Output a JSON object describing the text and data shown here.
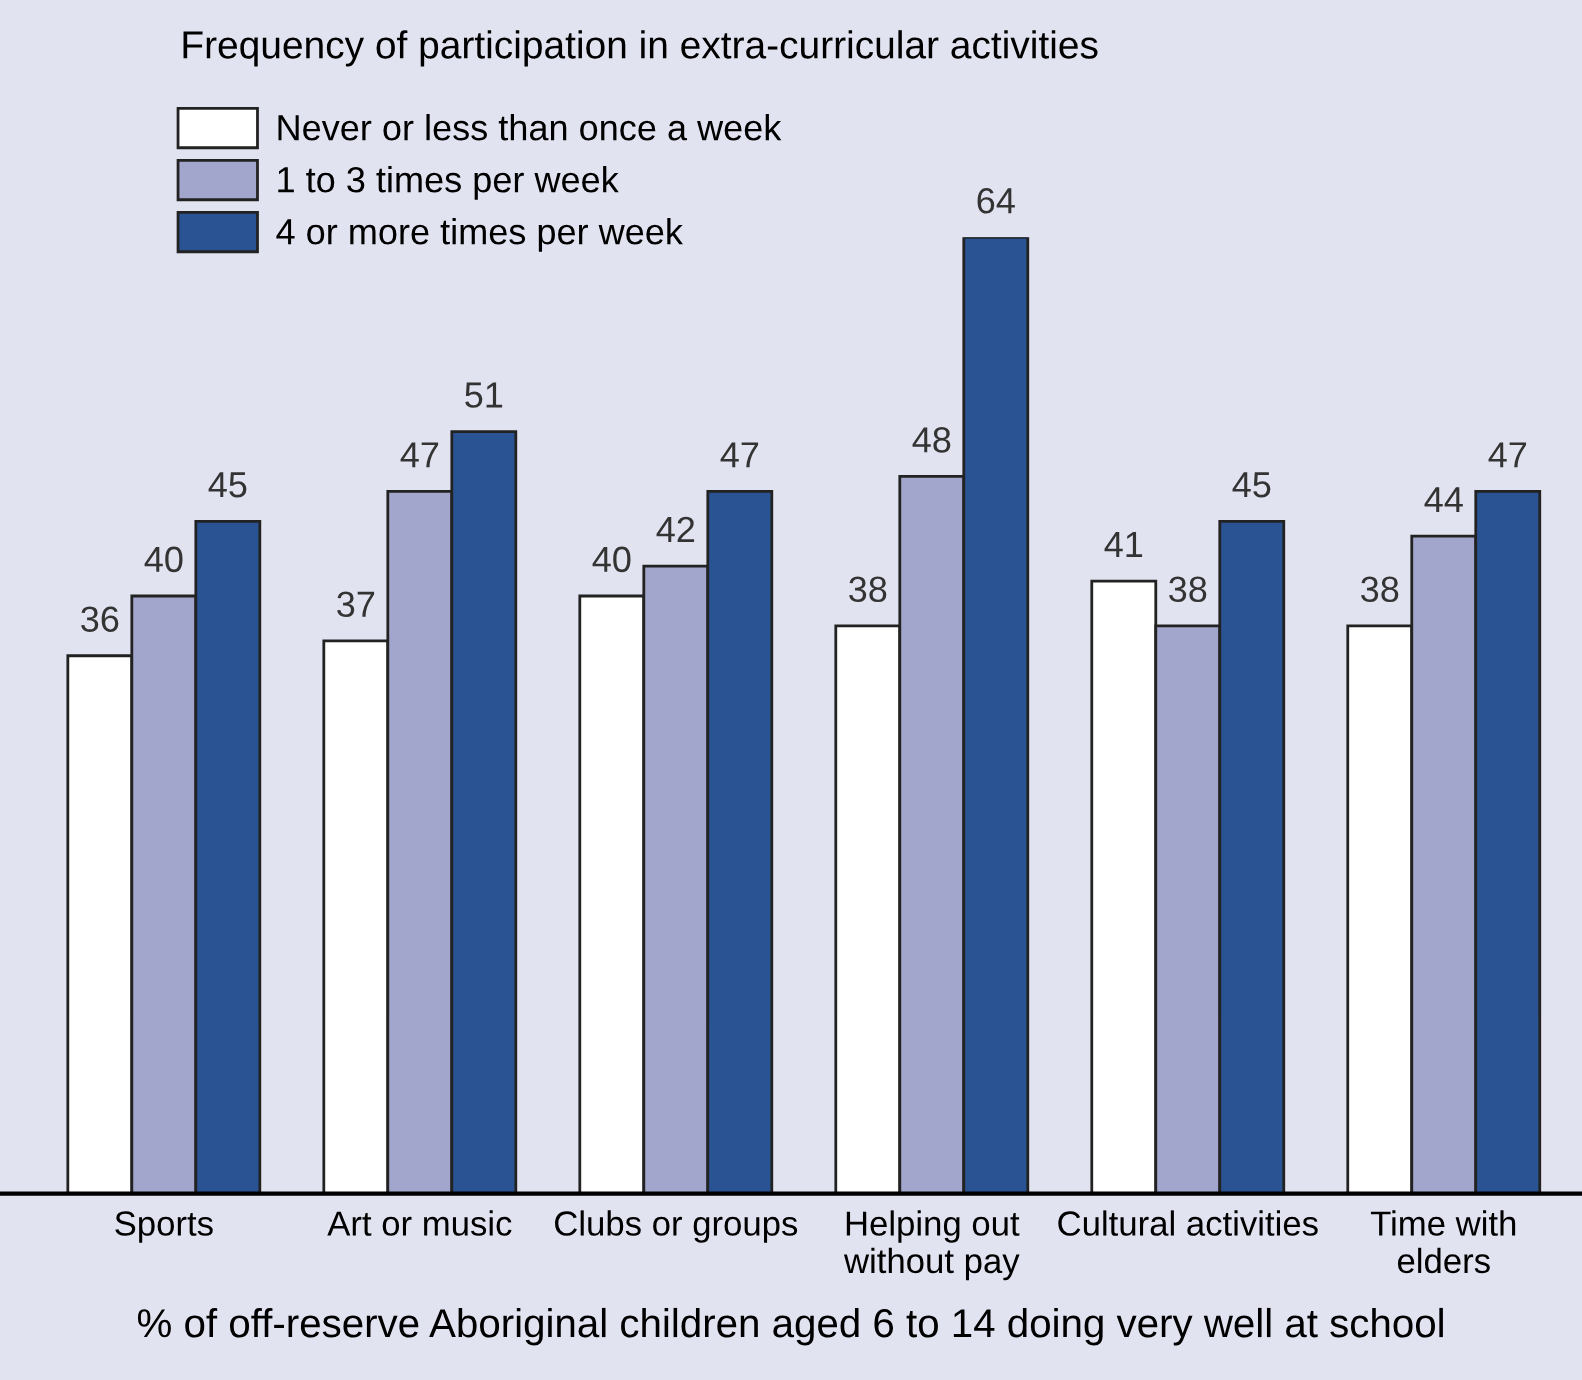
{
  "chart_data": {
    "type": "bar",
    "title": "Frequency of participation in extra-curricular activities",
    "xlabel": "% of off-reserve Aboriginal children aged 6 to 14 doing very well at school",
    "categories": [
      "Sports",
      "Art or music",
      "Clubs or groups",
      "Helping out\nwithout pay",
      "Cultural activities",
      "Time with\nelders"
    ],
    "series": [
      {
        "name": "Never or less than once a week",
        "color": "#ffffff",
        "values": [
          36,
          37,
          40,
          38,
          41,
          38
        ]
      },
      {
        "name": "1 to 3 times per week",
        "color": "#a2a6cc",
        "values": [
          40,
          47,
          42,
          48,
          38,
          44
        ]
      },
      {
        "name": "4 or more times per week",
        "color": "#2a5394",
        "values": [
          45,
          51,
          47,
          64,
          45,
          47
        ]
      }
    ],
    "data_labels": true,
    "relative": false,
    "grid": false,
    "legend": "top left"
  }
}
